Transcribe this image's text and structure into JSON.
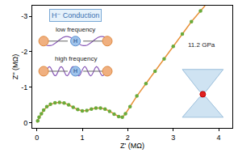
{
  "chart_data": {
    "type": "scatter",
    "x_label": "Z' (MΩ)",
    "y_label": "Z'' (MΩ)",
    "xlim": [
      -0.1,
      4.3
    ],
    "ylim": [
      0.15,
      -3.3
    ],
    "xticks": [
      0,
      1,
      2,
      3,
      4
    ],
    "yticks": [
      0,
      -1,
      -2,
      -3
    ],
    "grid": false,
    "series": [
      {
        "type": "scatter",
        "marker": "circle",
        "color": "#6aaa3a",
        "x": [
          0.02,
          0.05,
          0.1,
          0.15,
          0.22,
          0.3,
          0.4,
          0.5,
          0.6,
          0.7,
          0.8,
          0.9,
          1.0,
          1.1,
          1.2,
          1.3,
          1.4,
          1.5,
          1.6,
          1.7,
          1.8,
          1.88,
          1.95,
          2.05,
          2.2,
          2.4,
          2.6,
          2.8,
          3.0,
          3.2,
          3.4,
          3.6
        ],
        "values": [
          -0.05,
          -0.15,
          -0.25,
          -0.35,
          -0.45,
          -0.52,
          -0.56,
          -0.57,
          -0.55,
          -0.5,
          -0.43,
          -0.37,
          -0.33,
          -0.34,
          -0.38,
          -0.41,
          -0.41,
          -0.38,
          -0.32,
          -0.24,
          -0.17,
          -0.15,
          -0.25,
          -0.45,
          -0.75,
          -1.1,
          -1.45,
          -1.8,
          -2.15,
          -2.5,
          -2.85,
          -3.15
        ]
      },
      {
        "type": "line",
        "line_style": "solid",
        "color": "#e8923a",
        "x": [
          0.0,
          0.05,
          0.1,
          0.2,
          0.3,
          0.4,
          0.5,
          0.6,
          0.7,
          0.8,
          0.9,
          1.0,
          1.1,
          1.2,
          1.3,
          1.4,
          1.5,
          1.6,
          1.7,
          1.8,
          1.88,
          1.95,
          2.05,
          2.2,
          2.4,
          2.6,
          2.8,
          3.0,
          3.2,
          3.4,
          3.6,
          3.7
        ],
        "values": [
          0.0,
          -0.14,
          -0.25,
          -0.42,
          -0.51,
          -0.56,
          -0.57,
          -0.55,
          -0.5,
          -0.43,
          -0.37,
          -0.33,
          -0.34,
          -0.38,
          -0.41,
          -0.41,
          -0.38,
          -0.32,
          -0.24,
          -0.17,
          -0.15,
          -0.25,
          -0.45,
          -0.75,
          -1.1,
          -1.45,
          -1.8,
          -2.15,
          -2.5,
          -2.85,
          -3.15,
          -3.3
        ]
      }
    ],
    "annotations": [
      {
        "text": "H⁻ Conduction"
      },
      {
        "text": "low frequency"
      },
      {
        "text": "high frequency"
      },
      {
        "text": "H"
      },
      {
        "text": "H"
      },
      {
        "text": "11.2 GPa"
      }
    ]
  }
}
